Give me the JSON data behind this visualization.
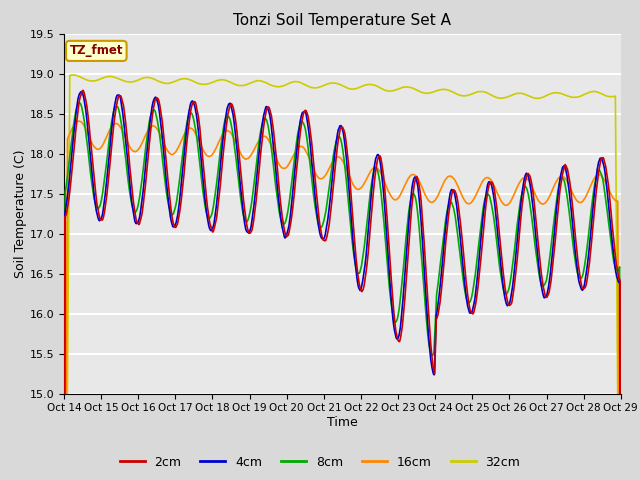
{
  "title": "Tonzi Soil Temperature Set A",
  "xlabel": "Time",
  "ylabel": "Soil Temperature (C)",
  "ylim": [
    15.0,
    19.5
  ],
  "yticks": [
    15.0,
    15.5,
    16.0,
    16.5,
    17.0,
    17.5,
    18.0,
    18.5,
    19.0,
    19.5
  ],
  "xtick_labels": [
    "Oct 14",
    "Oct 15",
    "Oct 16",
    "Oct 17",
    "Oct 18",
    "Oct 19",
    "Oct 20",
    "Oct 21",
    "Oct 22",
    "Oct 23",
    "Oct 24",
    "Oct 25",
    "Oct 26",
    "Oct 27",
    "Oct 28",
    "Oct 29"
  ],
  "colors": {
    "2cm": "#cc0000",
    "4cm": "#0000cc",
    "8cm": "#00aa00",
    "16cm": "#ff8800",
    "32cm": "#cccc00"
  },
  "legend_label": "TZ_fmet",
  "fig_bg": "#d9d9d9",
  "axes_bg": "#e8e8e8",
  "linewidth": 1.2,
  "n_points_per_day": 96
}
